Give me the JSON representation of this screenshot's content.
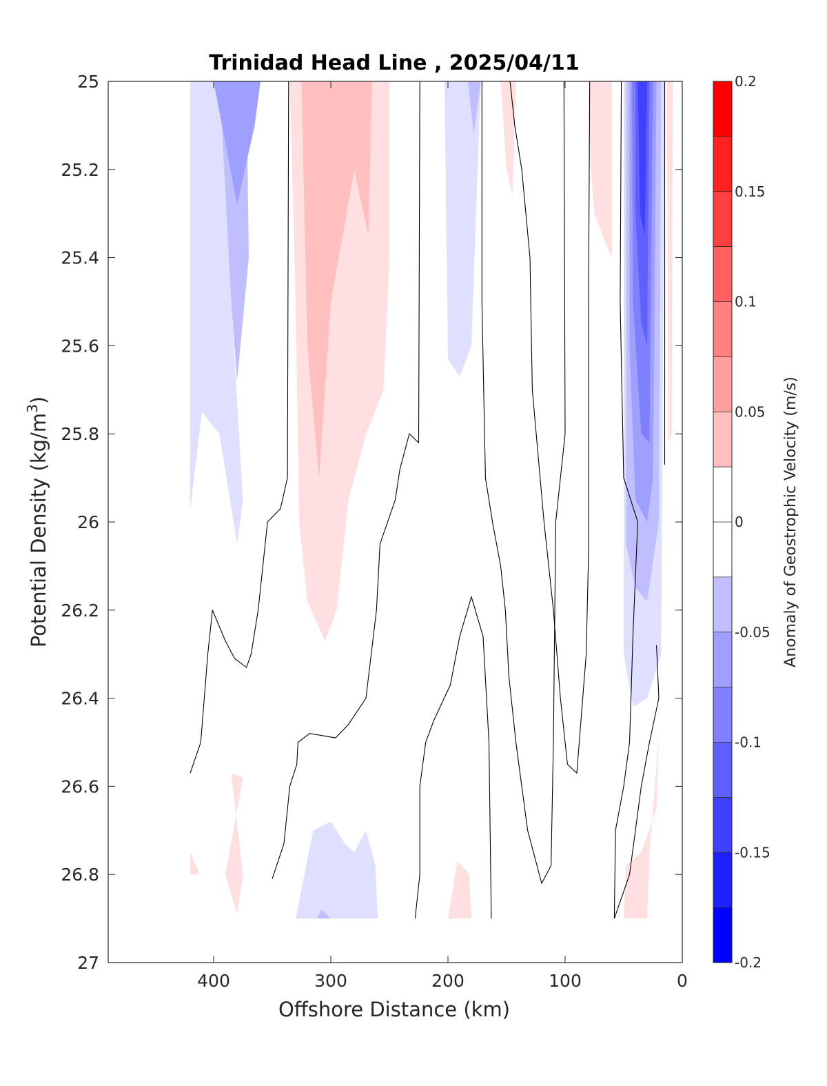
{
  "chart_data": {
    "type": "contour",
    "title": "Trinidad Head Line , 2025/04/11",
    "xlabel": "Offshore Distance (km)",
    "ylabel": {
      "main": "Potential Density (kg/m",
      "sup": "3",
      "close": ")"
    },
    "xlim": [
      490,
      0
    ],
    "ylim": [
      25,
      27
    ],
    "x_reversed": true,
    "y_reversed": true,
    "x_ticks": [
      400,
      300,
      200,
      100,
      0
    ],
    "y_ticks": [
      25,
      25.2,
      25.4,
      25.6,
      25.8,
      26,
      26.2,
      26.4,
      26.6,
      26.8,
      27
    ],
    "x_tick_labels": [
      "400",
      "300",
      "200",
      "100",
      "0"
    ],
    "y_tick_labels": [
      "25",
      "25.2",
      "25.4",
      "25.6",
      "25.8",
      "26",
      "26.2",
      "26.4",
      "26.6",
      "26.8",
      "27"
    ],
    "colorbar": {
      "label": "Anomaly of Geostrophic Velocity (m/s)",
      "range": [
        -0.2,
        0.2
      ],
      "step": 0.025,
      "ticks": [
        0.2,
        0.15,
        0.1,
        0.05,
        0,
        -0.05,
        -0.1,
        -0.15,
        -0.2
      ],
      "tick_labels": [
        "0.2",
        "0.15",
        "0.1",
        "0.05",
        "0",
        "-0.05",
        "-0.1",
        "-0.15",
        "-0.2"
      ]
    },
    "filled_regions": [
      {
        "level": -0.025,
        "points": [
          [
            420,
            25
          ],
          [
            392,
            25
          ],
          [
            385,
            25.5
          ],
          [
            375,
            25.95
          ],
          [
            380,
            26.05
          ],
          [
            395,
            25.8
          ],
          [
            410,
            25.75
          ],
          [
            420,
            25.97
          ]
        ]
      },
      {
        "level": -0.05,
        "points": [
          [
            410,
            25
          ],
          [
            395,
            25
          ],
          [
            385,
            25.5
          ],
          [
            380,
            25.68
          ],
          [
            370,
            25.4
          ],
          [
            372,
            25
          ],
          [
            380,
            25
          ]
        ]
      },
      {
        "level": -0.075,
        "points": [
          [
            400,
            25
          ],
          [
            360,
            25
          ],
          [
            365,
            25.1
          ],
          [
            380,
            25.28
          ]
        ]
      },
      {
        "level": -0.025,
        "points": [
          [
            203,
            25
          ],
          [
            172,
            25
          ],
          [
            180,
            25.6
          ],
          [
            190,
            25.67
          ],
          [
            200,
            25.63
          ]
        ]
      },
      {
        "level": -0.05,
        "points": [
          [
            183,
            25
          ],
          [
            172,
            25
          ],
          [
            178,
            25.12
          ]
        ]
      },
      {
        "level": -0.025,
        "points": [
          [
            330,
            26.9
          ],
          [
            260,
            26.9
          ],
          [
            262,
            26.78
          ],
          [
            270,
            26.7
          ],
          [
            280,
            26.75
          ],
          [
            288,
            26.73
          ],
          [
            300,
            26.68
          ],
          [
            315,
            26.7
          ]
        ]
      },
      {
        "level": -0.05,
        "points": [
          [
            312,
            26.9
          ],
          [
            300,
            26.9
          ],
          [
            308,
            26.88
          ]
        ]
      },
      {
        "level": -0.025,
        "points": [
          [
            50,
            25
          ],
          [
            15,
            25
          ],
          [
            18,
            26.3
          ],
          [
            30,
            26.4
          ],
          [
            42,
            26.42
          ],
          [
            50,
            26.3
          ]
        ]
      },
      {
        "level": -0.05,
        "points": [
          [
            48,
            25
          ],
          [
            18,
            25
          ],
          [
            20,
            26.0
          ],
          [
            30,
            26.18
          ],
          [
            40,
            26.15
          ],
          [
            48,
            26.05
          ]
        ]
      },
      {
        "level": -0.075,
        "points": [
          [
            45,
            25
          ],
          [
            22,
            25
          ],
          [
            25,
            25.9
          ],
          [
            30,
            26.0
          ],
          [
            40,
            25.95
          ],
          [
            45,
            25.6
          ]
        ]
      },
      {
        "level": -0.1,
        "points": [
          [
            43,
            25
          ],
          [
            25,
            25
          ],
          [
            28,
            25.82
          ],
          [
            35,
            25.8
          ],
          [
            42,
            25.5
          ]
        ]
      },
      {
        "level": -0.125,
        "points": [
          [
            40,
            25
          ],
          [
            28,
            25
          ],
          [
            30,
            25.6
          ],
          [
            35,
            25.55
          ],
          [
            40,
            25.3
          ]
        ]
      },
      {
        "level": -0.15,
        "points": [
          [
            38,
            25
          ],
          [
            30,
            25
          ],
          [
            32,
            25.35
          ],
          [
            36,
            25.3
          ]
        ]
      },
      {
        "level": 0.025,
        "points": [
          [
            335,
            25
          ],
          [
            250,
            25
          ],
          [
            250,
            25.4
          ],
          [
            255,
            25.7
          ],
          [
            270,
            25.8
          ],
          [
            285,
            25.95
          ],
          [
            295,
            26.2
          ],
          [
            305,
            26.27
          ],
          [
            320,
            26.18
          ],
          [
            327,
            26.0
          ],
          [
            330,
            25.5
          ]
        ]
      },
      {
        "level": 0.05,
        "points": [
          [
            325,
            25
          ],
          [
            265,
            25
          ],
          [
            268,
            25.35
          ],
          [
            280,
            25.2
          ],
          [
            300,
            25.5
          ],
          [
            310,
            25.9
          ],
          [
            320,
            25.6
          ]
        ]
      },
      {
        "level": 0.025,
        "points": [
          [
            155,
            25
          ],
          [
            142,
            25
          ],
          [
            145,
            25.26
          ],
          [
            150,
            25.2
          ]
        ]
      },
      {
        "level": 0.025,
        "points": [
          [
            80,
            25
          ],
          [
            60,
            25
          ],
          [
            60,
            25.4
          ],
          [
            68,
            25.35
          ],
          [
            75,
            25.3
          ],
          [
            78,
            25.2
          ]
        ]
      },
      {
        "level": 0.025,
        "points": [
          [
            13,
            25
          ],
          [
            8,
            25
          ],
          [
            9,
            25.8
          ],
          [
            12,
            25.82
          ]
        ]
      },
      {
        "level": 0.025,
        "points": [
          [
            390,
            26.8
          ],
          [
            375,
            26.58
          ],
          [
            385,
            26.57
          ],
          [
            375,
            26.8
          ],
          [
            380,
            26.89
          ]
        ]
      },
      {
        "level": 0.025,
        "points": [
          [
            420,
            26.75
          ],
          [
            412,
            26.8
          ],
          [
            420,
            26.8
          ]
        ]
      },
      {
        "level": 0.025,
        "points": [
          [
            200,
            26.9
          ],
          [
            180,
            26.9
          ],
          [
            182,
            26.8
          ],
          [
            192,
            26.77
          ]
        ]
      },
      {
        "level": 0.025,
        "points": [
          [
            50,
            26.9
          ],
          [
            30,
            26.9
          ],
          [
            28,
            26.75
          ],
          [
            22,
            26.55
          ],
          [
            20,
            26.48
          ],
          [
            22,
            26.65
          ],
          [
            35,
            26.75
          ],
          [
            48,
            26.78
          ]
        ]
      }
    ],
    "zero_contours": [
      [
        [
          420,
          26.57
        ],
        [
          411,
          26.5
        ],
        [
          405,
          26.3
        ],
        [
          401,
          26.2
        ],
        [
          390,
          26.27
        ],
        [
          382,
          26.31
        ],
        [
          372,
          26.33
        ],
        [
          368,
          26.3
        ],
        [
          362,
          26.2
        ],
        [
          354,
          26.0
        ],
        [
          343,
          25.97
        ],
        [
          337,
          25.9
        ],
        [
          336,
          25.0
        ]
      ],
      [
        [
          350,
          26.81
        ],
        [
          340,
          26.73
        ],
        [
          335,
          26.6
        ],
        [
          329,
          26.55
        ],
        [
          328,
          26.5
        ],
        [
          318,
          26.48
        ],
        [
          296,
          26.49
        ],
        [
          285,
          26.46
        ],
        [
          270,
          26.4
        ],
        [
          261,
          26.2
        ],
        [
          258,
          26.05
        ],
        [
          245,
          25.95
        ],
        [
          241,
          25.88
        ],
        [
          233,
          25.8
        ],
        [
          225,
          25.82
        ],
        [
          224,
          25.0
        ]
      ],
      [
        [
          228,
          26.9
        ],
        [
          224,
          26.8
        ],
        [
          224,
          26.6
        ],
        [
          219,
          26.5
        ],
        [
          212,
          26.45
        ],
        [
          198,
          26.37
        ],
        [
          190,
          26.26
        ],
        [
          180,
          26.17
        ],
        [
          170,
          26.26
        ],
        [
          165,
          26.5
        ],
        [
          163,
          26.9
        ]
      ],
      [
        [
          171,
          25.0
        ],
        [
          171,
          25.5
        ],
        [
          168,
          25.9
        ],
        [
          162,
          26.0
        ],
        [
          155,
          26.1
        ],
        [
          151,
          26.2
        ],
        [
          148,
          26.35
        ],
        [
          142,
          26.5
        ],
        [
          132,
          26.7
        ],
        [
          120,
          26.82
        ],
        [
          112,
          26.78
        ],
        [
          110,
          26.5
        ],
        [
          108,
          26.0
        ],
        [
          100,
          25.8
        ],
        [
          101,
          25.0
        ]
      ],
      [
        [
          147,
          25.0
        ],
        [
          143,
          25.1
        ],
        [
          137,
          25.2
        ],
        [
          130,
          25.4
        ],
        [
          128,
          25.7
        ],
        [
          118,
          26.0
        ],
        [
          110,
          26.2
        ],
        [
          104,
          26.4
        ],
        [
          98,
          26.55
        ],
        [
          90,
          26.57
        ],
        [
          82,
          26.3
        ],
        [
          80,
          26.07
        ],
        [
          80,
          25.5
        ],
        [
          79,
          25.0
        ]
      ],
      [
        [
          58,
          26.9
        ],
        [
          57,
          26.7
        ],
        [
          50,
          26.6
        ],
        [
          45,
          26.5
        ],
        [
          42,
          26.25
        ],
        [
          38,
          26.0
        ],
        [
          50,
          25.9
        ],
        [
          53,
          25.5
        ],
        [
          52,
          25.0
        ]
      ],
      [
        [
          22,
          26.28
        ],
        [
          20,
          26.4
        ],
        [
          28,
          26.5
        ],
        [
          35,
          26.6
        ],
        [
          40,
          26.7
        ],
        [
          45,
          26.8
        ],
        [
          58,
          26.9
        ]
      ],
      [
        [
          15,
          25.87
        ],
        [
          15,
          25.0
        ]
      ]
    ]
  }
}
